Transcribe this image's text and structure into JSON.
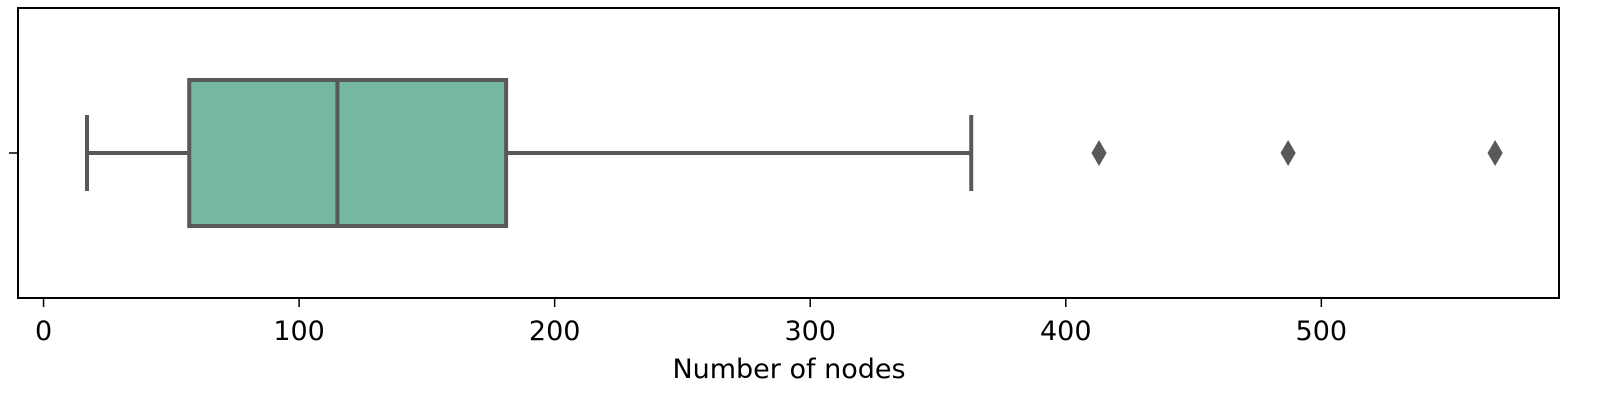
{
  "chart_data": {
    "type": "box",
    "orientation": "horizontal",
    "xlabel": "Number of nodes",
    "ylabel": "",
    "title": "",
    "xlim": [
      -10,
      593
    ],
    "x_ticks": [
      0,
      100,
      200,
      300,
      400,
      500
    ],
    "x_tick_labels": [
      "0",
      "100",
      "200",
      "300",
      "400",
      "500"
    ],
    "grid": false,
    "box": {
      "whisker_low": 17,
      "q1": 57,
      "median": 115,
      "q3": 181,
      "whisker_high": 363,
      "outliers": [
        413,
        487,
        568
      ]
    },
    "colors": {
      "box_fill": "#74b8a0",
      "line": "#595959",
      "axis": "#000000"
    }
  }
}
